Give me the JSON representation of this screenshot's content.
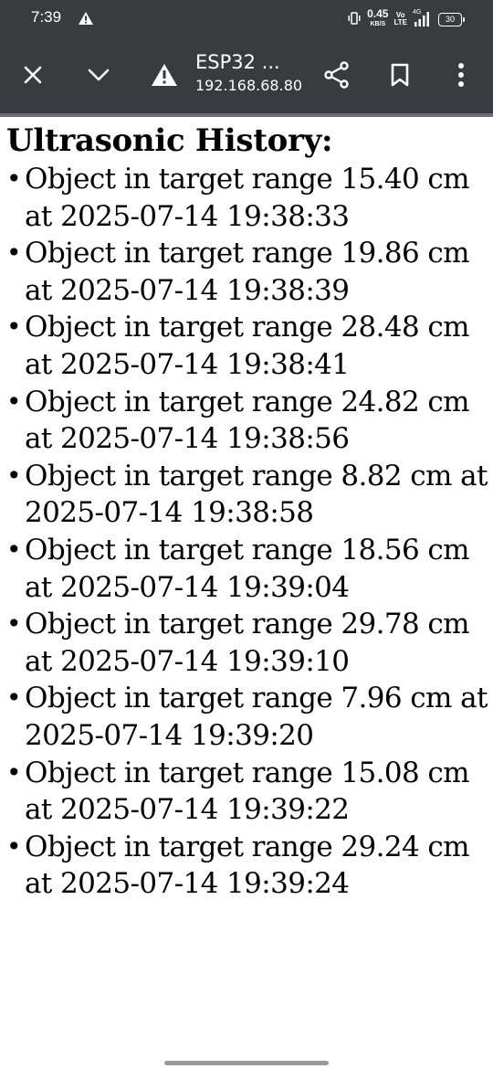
{
  "status_bar": {
    "time": "7:39",
    "net_speed": "0.45",
    "net_speed_unit": "KB/S",
    "volte_top": "Vo",
    "volte_bottom": "LTE",
    "network_gen": "4G",
    "battery": "30",
    "icons": [
      "alert-triangle-icon",
      "vibrate-icon",
      "signal-bars-icon",
      "battery-icon"
    ]
  },
  "toolbar": {
    "title": "ESP32 ...",
    "url": "192.168.68.80",
    "icons": [
      "close-icon",
      "chevron-down-icon",
      "warning-icon",
      "share-icon",
      "bookmark-icon",
      "more-vert-icon"
    ]
  },
  "page": {
    "heading": "Ultrasonic History:",
    "items": [
      "Object in target range 15.40 cm at 2025-07-14 19:38:33",
      "Object in target range 19.86 cm at 2025-07-14 19:38:39",
      "Object in target range 28.48 cm at 2025-07-14 19:38:41",
      "Object in target range 24.82 cm at 2025-07-14 19:38:56",
      "Object in target range 8.82 cm at 2025-07-14 19:38:58",
      "Object in target range 18.56 cm at 2025-07-14 19:39:04",
      "Object in target range 29.78 cm at 2025-07-14 19:39:10",
      "Object in target range 7.96 cm at 2025-07-14 19:39:20",
      "Object in target range 15.08 cm at 2025-07-14 19:39:22",
      "Object in target range 29.24 cm at 2025-07-14 19:39:24"
    ]
  },
  "colors": {
    "bar_background": "#3a3b3e",
    "page_background": "#ffffff",
    "text": "#000000"
  }
}
